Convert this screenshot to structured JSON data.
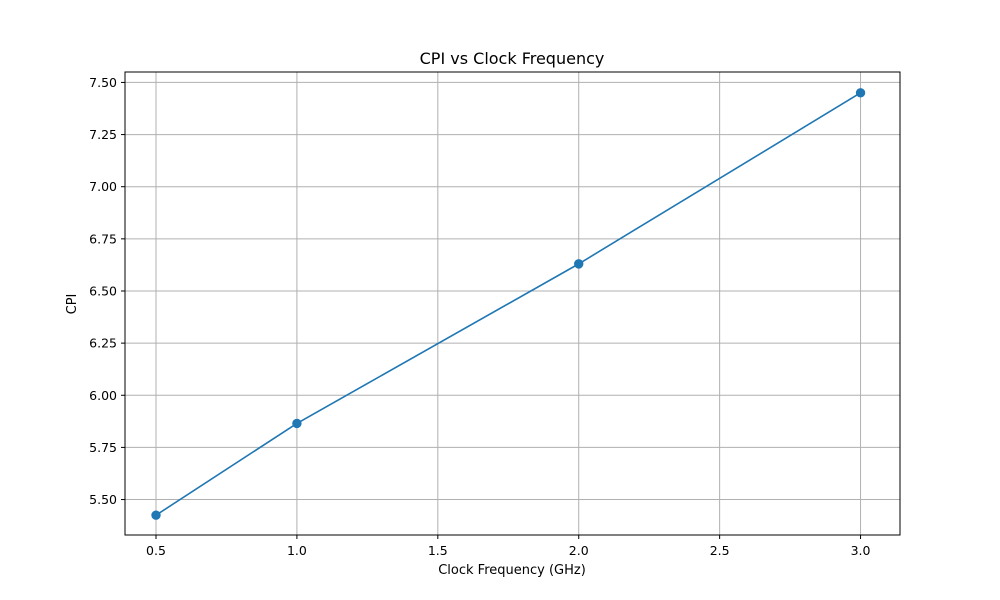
{
  "chart_data": {
    "type": "line",
    "title": "CPI vs Clock Frequency",
    "xlabel": "Clock Frequency (GHz)",
    "ylabel": "CPI",
    "x": [
      0.5,
      1.0,
      2.0,
      3.0
    ],
    "series": [
      {
        "values": [
          5.425,
          5.865,
          6.63,
          7.45
        ],
        "color": "#1f77b4",
        "marker": "circle"
      }
    ],
    "xlim": [
      0.39,
      3.14
    ],
    "ylim": [
      5.33,
      7.55
    ],
    "xticks": [
      0.5,
      1.0,
      1.5,
      2.0,
      2.5,
      3.0
    ],
    "xtick_labels": [
      "0.5",
      "1.0",
      "1.5",
      "2.0",
      "2.5",
      "3.0"
    ],
    "yticks": [
      5.5,
      5.75,
      6.0,
      6.25,
      6.5,
      6.75,
      7.0,
      7.25,
      7.5
    ],
    "ytick_labels": [
      "5.50",
      "5.75",
      "6.00",
      "6.25",
      "6.50",
      "6.75",
      "7.00",
      "7.25",
      "7.50"
    ],
    "grid": true,
    "grid_color": "#b0b0b0",
    "legend": "none"
  }
}
